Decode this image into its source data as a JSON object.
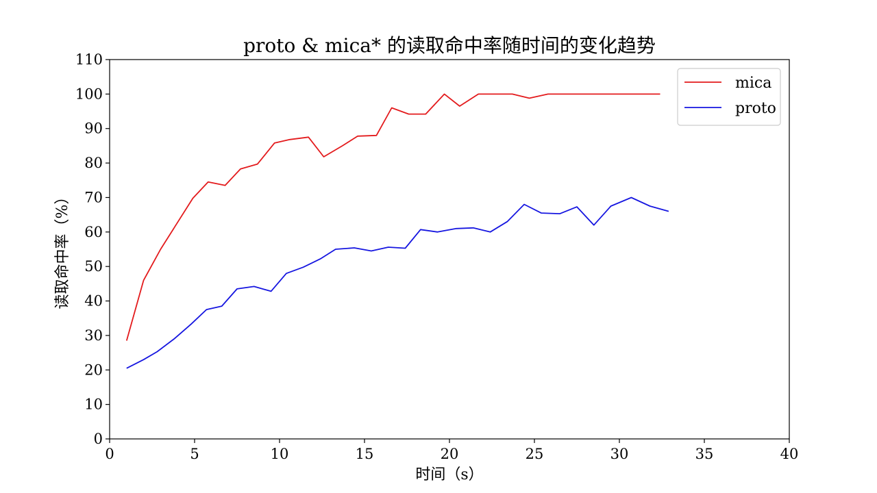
{
  "chart_data": {
    "type": "line",
    "title": "proto & mica* 的读取命中率随时间的变化趋势",
    "xlabel": "时间（s）",
    "ylabel": "读取命中率（%）",
    "xlim": [
      0,
      40
    ],
    "ylim": [
      0,
      110
    ],
    "xticks": [
      0,
      5,
      10,
      15,
      20,
      25,
      30,
      35,
      40
    ],
    "yticks": [
      0,
      10,
      20,
      30,
      40,
      50,
      60,
      70,
      80,
      90,
      100,
      110
    ],
    "grid": false,
    "legend_position": "top-right",
    "series": [
      {
        "name": "mica",
        "color": "#e31a1c",
        "x": [
          1.0,
          2.0,
          3.0,
          3.9,
          4.9,
          5.8,
          6.8,
          7.7,
          8.7,
          9.7,
          10.6,
          11.7,
          12.6,
          13.7,
          14.6,
          15.7,
          16.6,
          17.6,
          18.6,
          19.7,
          20.6,
          21.7,
          22.6,
          23.7,
          24.7,
          25.8,
          26.8,
          27.8,
          28.8,
          29.8,
          30.8,
          31.8,
          32.4
        ],
        "values": [
          28.5,
          46.0,
          55.0,
          62.0,
          69.8,
          74.5,
          73.5,
          78.3,
          79.7,
          85.8,
          86.8,
          87.5,
          81.8,
          85.0,
          87.8,
          88.0,
          96.0,
          94.2,
          94.2,
          100.0,
          96.5,
          100.0,
          100.0,
          100.0,
          98.8,
          100.0,
          100.0,
          100.0,
          100.0,
          100.0,
          100.0,
          100.0,
          100.0
        ]
      },
      {
        "name": "proto",
        "color": "#1515e0",
        "x": [
          1.0,
          2.0,
          2.8,
          3.8,
          4.8,
          5.7,
          6.6,
          7.5,
          8.5,
          9.5,
          10.4,
          11.4,
          12.4,
          13.3,
          14.4,
          15.4,
          16.4,
          17.4,
          18.3,
          19.3,
          20.4,
          21.4,
          22.4,
          23.4,
          24.4,
          25.4,
          26.5,
          27.5,
          28.5,
          29.5,
          30.7,
          31.8,
          32.9
        ],
        "values": [
          20.5,
          23.0,
          25.3,
          29.0,
          33.3,
          37.5,
          38.5,
          43.5,
          44.2,
          42.8,
          48.0,
          49.8,
          52.2,
          55.0,
          55.4,
          54.5,
          55.6,
          55.3,
          60.7,
          60.0,
          61.0,
          61.2,
          60.0,
          63.0,
          68.0,
          65.5,
          65.3,
          67.3,
          62.0,
          67.5,
          70.0,
          67.5,
          66.0
        ]
      }
    ]
  }
}
